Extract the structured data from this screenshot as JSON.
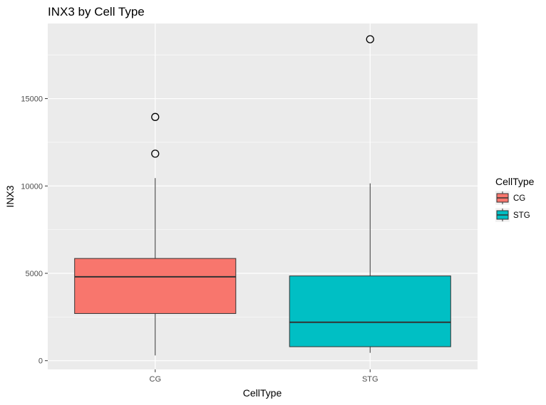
{
  "chart_data": {
    "type": "boxplot",
    "title": "INX3 by Cell Type",
    "xlabel": "CellType",
    "ylabel": "INX3",
    "categories": [
      "CG",
      "STG"
    ],
    "ylim": [
      -500,
      19300
    ],
    "yticks": [
      0,
      5000,
      10000,
      15000
    ],
    "ytick_labels": [
      "0",
      "5000",
      "10000",
      "15000"
    ],
    "grid": true,
    "legend": {
      "title": "CellType",
      "position": "right",
      "entries": [
        "CG",
        "STG"
      ]
    },
    "series": [
      {
        "category": "CG",
        "color": "#F8766D",
        "whisker_low": 300,
        "q1": 2700,
        "median": 4800,
        "q3": 5850,
        "whisker_high": 10450,
        "outliers": [
          11850,
          13950
        ]
      },
      {
        "category": "STG",
        "color": "#00BFC4",
        "whisker_low": 450,
        "q1": 800,
        "median": 2200,
        "q3": 4850,
        "whisker_high": 10150,
        "outliers": [
          18400
        ]
      }
    ]
  }
}
